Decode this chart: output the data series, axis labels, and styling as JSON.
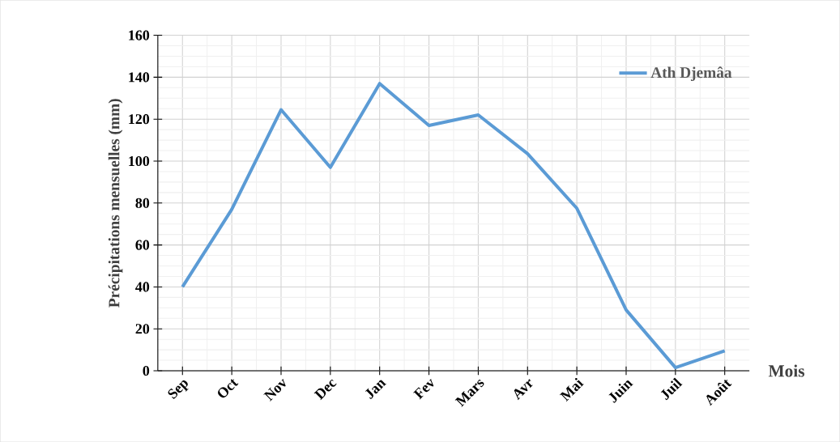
{
  "chart_data": {
    "type": "line",
    "xlabel": "Mois",
    "ylabel": "Précipitations mensuelles (mm)",
    "categories": [
      "Sep",
      "Oct",
      "Nov",
      "Dec",
      "Jan",
      "Fev",
      "Mars",
      "Avr",
      "Mai",
      "Juin",
      "Juil",
      "Août"
    ],
    "series": [
      {
        "name": "Ath Djemâa",
        "color": "#5b9bd5",
        "values": [
          40,
          77,
          124.5,
          97,
          137,
          117,
          122,
          103.5,
          77.5,
          29,
          1.5,
          9.5
        ]
      }
    ],
    "ylim": [
      0,
      160
    ],
    "yticks": [
      0,
      20,
      40,
      60,
      80,
      100,
      120,
      140,
      160
    ],
    "grid": true,
    "legend": "top right",
    "marker": "none",
    "line_style": "solid"
  }
}
